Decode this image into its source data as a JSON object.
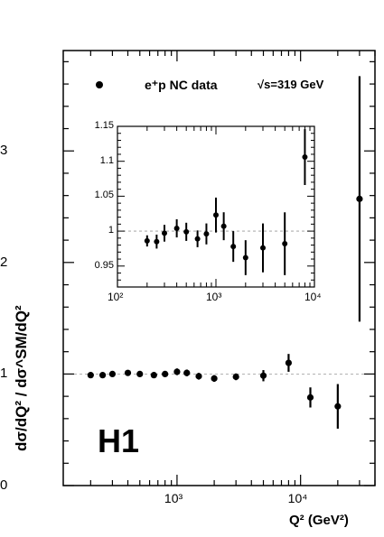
{
  "chart_data": [
    {
      "type": "scatter",
      "title": "",
      "xlabel": "Q² (GeV²)",
      "ylabel": "dσ/dQ² / dσ^SM/dQ²",
      "xscale": "log",
      "xlim": [
        120,
        40000
      ],
      "ylim": [
        0,
        3.9
      ],
      "yticks": [
        "0",
        "1",
        "2",
        "3"
      ],
      "xticks": [
        "10³",
        "10⁴"
      ],
      "reference_line": 1,
      "legend_label": "e⁺p NC data",
      "energy_label": "√s=319 GeV",
      "experiment_label": "H1",
      "series": [
        {
          "name": "e⁺p NC data",
          "points": [
            {
              "x": 200,
              "y": 0.99,
              "err": 0.02
            },
            {
              "x": 250,
              "y": 0.99,
              "err": 0.02
            },
            {
              "x": 300,
              "y": 1.0,
              "err": 0.02
            },
            {
              "x": 400,
              "y": 1.01,
              "err": 0.02
            },
            {
              "x": 500,
              "y": 1.0,
              "err": 0.02
            },
            {
              "x": 650,
              "y": 0.99,
              "err": 0.02
            },
            {
              "x": 800,
              "y": 1.0,
              "err": 0.02
            },
            {
              "x": 1000,
              "y": 1.02,
              "err": 0.03
            },
            {
              "x": 1200,
              "y": 1.01,
              "err": 0.03
            },
            {
              "x": 1500,
              "y": 0.98,
              "err": 0.03
            },
            {
              "x": 2000,
              "y": 0.96,
              "err": 0.03
            },
            {
              "x": 3000,
              "y": 0.975,
              "err": 0.03
            },
            {
              "x": 5000,
              "y": 0.985,
              "err": 0.05
            },
            {
              "x": 8000,
              "y": 1.1,
              "err": 0.08
            },
            {
              "x": 12000,
              "y": 0.79,
              "err": 0.09
            },
            {
              "x": 20000,
              "y": 0.71,
              "err": 0.2
            },
            {
              "x": 30000,
              "y": 2.57,
              "err": 1.1
            }
          ]
        }
      ]
    },
    {
      "type": "scatter",
      "title": "",
      "xscale": "log",
      "xlim": [
        100,
        10000
      ],
      "ylim": [
        0.92,
        1.15
      ],
      "yticks": [
        "0.95",
        "1",
        "1.05",
        "1.1",
        "1.15"
      ],
      "xticks": [
        "10²",
        "10³",
        "10⁴"
      ],
      "reference_line": 1,
      "series": [
        {
          "name": "",
          "points": [
            {
              "x": 200,
              "y": 0.986,
              "err": 0.008
            },
            {
              "x": 250,
              "y": 0.985,
              "err": 0.01
            },
            {
              "x": 300,
              "y": 0.997,
              "err": 0.012
            },
            {
              "x": 400,
              "y": 1.004,
              "err": 0.013
            },
            {
              "x": 500,
              "y": 0.999,
              "err": 0.013
            },
            {
              "x": 650,
              "y": 0.989,
              "err": 0.012
            },
            {
              "x": 800,
              "y": 0.996,
              "err": 0.015
            },
            {
              "x": 1000,
              "y": 1.023,
              "err": 0.025
            },
            {
              "x": 1200,
              "y": 1.007,
              "err": 0.02
            },
            {
              "x": 1500,
              "y": 0.978,
              "err": 0.022
            },
            {
              "x": 2000,
              "y": 0.962,
              "err": 0.025
            },
            {
              "x": 3000,
              "y": 0.976,
              "err": 0.035
            },
            {
              "x": 5000,
              "y": 0.982,
              "err": 0.045
            },
            {
              "x": 8000,
              "y": 1.106,
              "err": 0.04
            }
          ]
        }
      ]
    }
  ]
}
